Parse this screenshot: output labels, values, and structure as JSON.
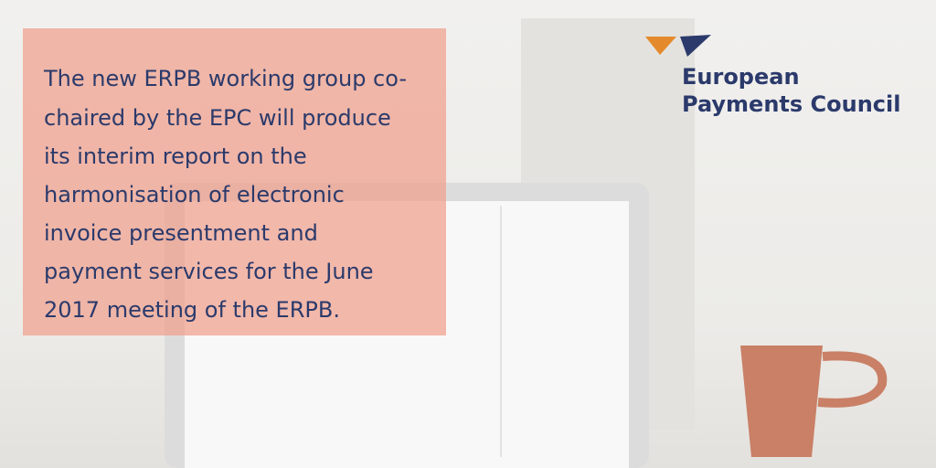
{
  "message": {
    "lines": [
      "The new ERPB working group co-",
      "chaired by the EPC will produce",
      "its interim report on the",
      "harmonisation of electronic",
      "invoice presentment and",
      "payment services for the June",
      "2017 meeting of the ERPB."
    ]
  },
  "logo": {
    "lines": [
      "European",
      "Payments Council"
    ]
  }
}
